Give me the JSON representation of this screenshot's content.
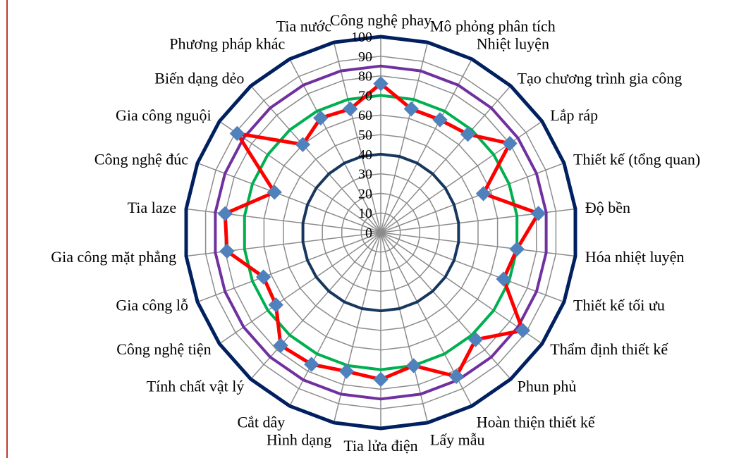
{
  "chart_data": {
    "type": "radar",
    "categories": [
      "Công nghệ phay",
      "Mô phỏng phân tích",
      "Nhiệt luyện",
      "Tạo chương trình gia công",
      "Lắp ráp",
      "Thiết kế (tổng quan)",
      "Độ bền",
      "Hóa nhiệt luyện",
      "Thiết kế tối ưu",
      "Thẩm định thiết kế",
      "Phun phủ",
      "Hoàn thiện thiết kế",
      "Lấy mẫu",
      "Tia lửa điện",
      "Hình dạng",
      "Cắt dây",
      "Tính chất vật lý",
      "Công nghệ tiện",
      "Gia công lỗ",
      "Gia công mặt phẳng",
      "Tia laze",
      "Công nghệ đúc",
      "Gia công nguội",
      "Biến dạng dẻo",
      "Phương pháp khác",
      "Tia nước"
    ],
    "radial_ticks": [
      "0",
      "10",
      "20",
      "30",
      "40",
      "50",
      "60",
      "70",
      "80",
      "90",
      "100"
    ],
    "rlim": [
      0,
      100
    ],
    "grid": true,
    "legend": "none",
    "series": [
      {
        "color": "#ff0000",
        "marker_color": "#4f81bd",
        "marker": "diamond",
        "values": [
          76,
          65,
          65,
          67,
          80,
          56,
          81,
          70,
          67,
          88,
          73,
          83,
          70,
          75,
          73,
          76,
          77,
          65,
          64,
          79,
          80,
          58,
          89,
          60,
          66,
          65
        ]
      },
      {
        "color": "#00b050",
        "constant": 70
      },
      {
        "color": "#7030a0",
        "constant": 85
      },
      {
        "color": "#002060",
        "constant": 100
      },
      {
        "color": "#17375e",
        "constant": 40
      }
    ]
  }
}
